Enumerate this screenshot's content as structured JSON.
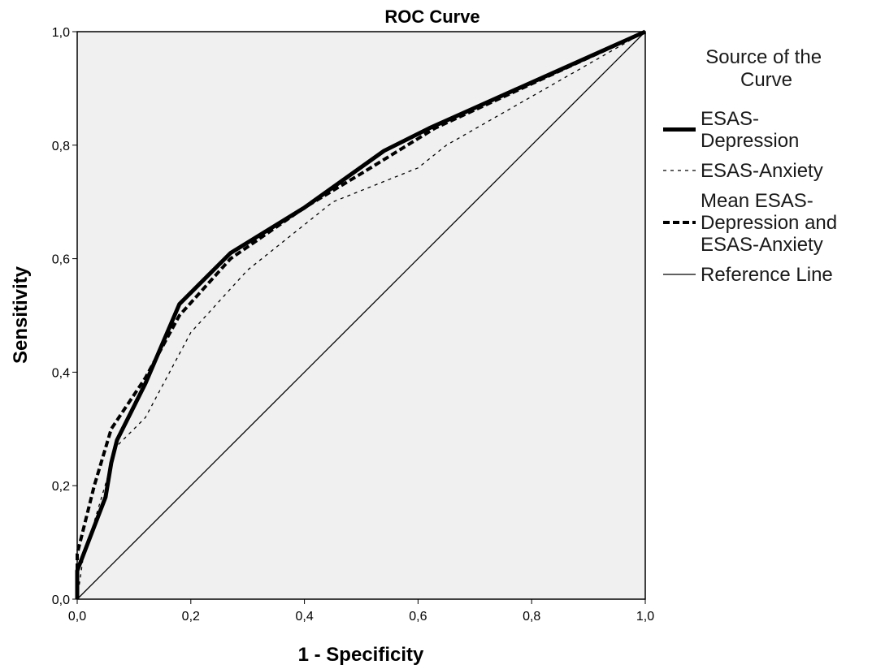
{
  "chart_data": {
    "type": "line",
    "title": "ROC Curve",
    "xlabel": "1 - Specificity",
    "ylabel": "Sensitivity",
    "xlim": [
      0,
      1
    ],
    "ylim": [
      0,
      1
    ],
    "x_ticks": [
      "0,0",
      "0,2",
      "0,4",
      "0,6",
      "0,8",
      "1,0"
    ],
    "y_ticks": [
      "0,0",
      "0,2",
      "0,4",
      "0,6",
      "0,8",
      "1,0"
    ],
    "grid": false,
    "plot_background": "#f0f0f0",
    "legend": {
      "title": [
        "Source of the",
        "Curve"
      ],
      "placement": "right"
    },
    "series": [
      {
        "name": "ESAS-Depression",
        "label_lines": [
          "ESAS-",
          "Depression"
        ],
        "style": "solid-thick",
        "color": "#000000",
        "x": [
          0.0,
          0.0,
          0.05,
          0.06,
          0.07,
          0.12,
          0.18,
          0.27,
          0.4,
          0.54,
          0.62,
          1.0
        ],
        "y": [
          0.0,
          0.05,
          0.18,
          0.24,
          0.28,
          0.38,
          0.52,
          0.61,
          0.69,
          0.79,
          0.83,
          1.0
        ]
      },
      {
        "name": "ESAS-Anxiety",
        "label_lines": [
          "ESAS-Anxiety"
        ],
        "style": "dotted",
        "color": "#000000",
        "x": [
          0.0,
          0.01,
          0.04,
          0.07,
          0.12,
          0.2,
          0.3,
          0.45,
          0.6,
          0.65,
          1.0
        ],
        "y": [
          0.0,
          0.07,
          0.17,
          0.27,
          0.32,
          0.47,
          0.58,
          0.7,
          0.76,
          0.8,
          1.0
        ]
      },
      {
        "name": "Mean ESAS-Depression and ESAS-Anxiety",
        "label_lines": [
          "Mean ESAS-",
          "Depression and",
          "ESAS-Anxiety"
        ],
        "style": "dashed",
        "color": "#000000",
        "x": [
          0.0,
          0.0,
          0.03,
          0.06,
          0.12,
          0.18,
          0.27,
          0.4,
          0.5,
          0.63,
          1.0
        ],
        "y": [
          0.0,
          0.08,
          0.2,
          0.3,
          0.39,
          0.5,
          0.6,
          0.69,
          0.75,
          0.83,
          1.0
        ]
      },
      {
        "name": "Reference Line",
        "label_lines": [
          "Reference Line"
        ],
        "style": "solid-thin",
        "color": "#000000",
        "x": [
          0.0,
          1.0
        ],
        "y": [
          0.0,
          1.0
        ]
      }
    ]
  }
}
